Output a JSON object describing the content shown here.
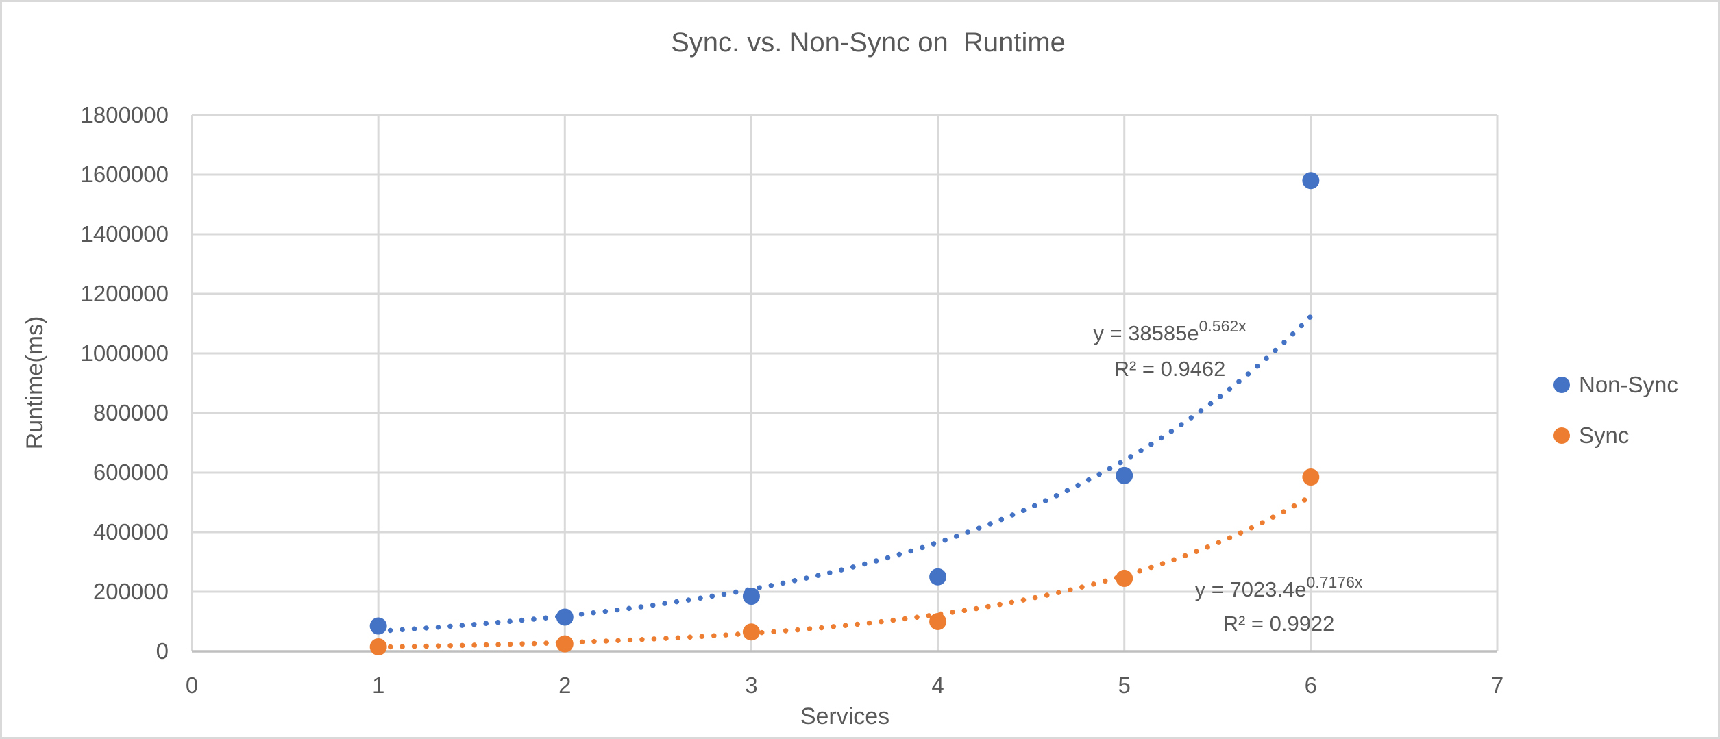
{
  "chart_data": {
    "type": "scatter",
    "title": "Sync. vs. Non-Sync on  Runtime",
    "xlabel": "Services",
    "ylabel": "Runtime(ms)",
    "xlim": [
      0,
      7
    ],
    "ylim": [
      0,
      1800000
    ],
    "xticks": [
      0,
      1,
      2,
      3,
      4,
      5,
      6,
      7
    ],
    "yticks": [
      0,
      200000,
      400000,
      600000,
      800000,
      1000000,
      1200000,
      1400000,
      1600000,
      1800000
    ],
    "grid": true,
    "legend_position": "right",
    "colors": {
      "grid": "#D9D9D9",
      "axis_line": "#BFBFBF",
      "text": "#595959"
    },
    "series": [
      {
        "name": "Non-Sync",
        "color": "#4472C4",
        "x": [
          1,
          2,
          3,
          4,
          5,
          6
        ],
        "y": [
          85000,
          115000,
          185000,
          250000,
          590000,
          1580000
        ],
        "trendline": {
          "type": "exponential",
          "coefficient": 38585,
          "exponent_rate": 0.562,
          "range": [
            1,
            6
          ],
          "style": "dotted",
          "equation_prefix": "y = 38585e",
          "equation_exponent": "0.562x",
          "r_squared_label": "R² = 0.9462"
        }
      },
      {
        "name": "Sync",
        "color": "#ED7D31",
        "x": [
          1,
          2,
          3,
          4,
          5,
          6
        ],
        "y": [
          15000,
          25000,
          65000,
          100000,
          245000,
          585000
        ],
        "trendline": {
          "type": "exponential",
          "coefficient": 7023.4,
          "exponent_rate": 0.7176,
          "range": [
            1,
            6
          ],
          "style": "dotted",
          "equation_prefix": "y = 7023.4e",
          "equation_exponent": "0.7176x",
          "r_squared_label": "R² = 0.9922"
        }
      }
    ]
  }
}
